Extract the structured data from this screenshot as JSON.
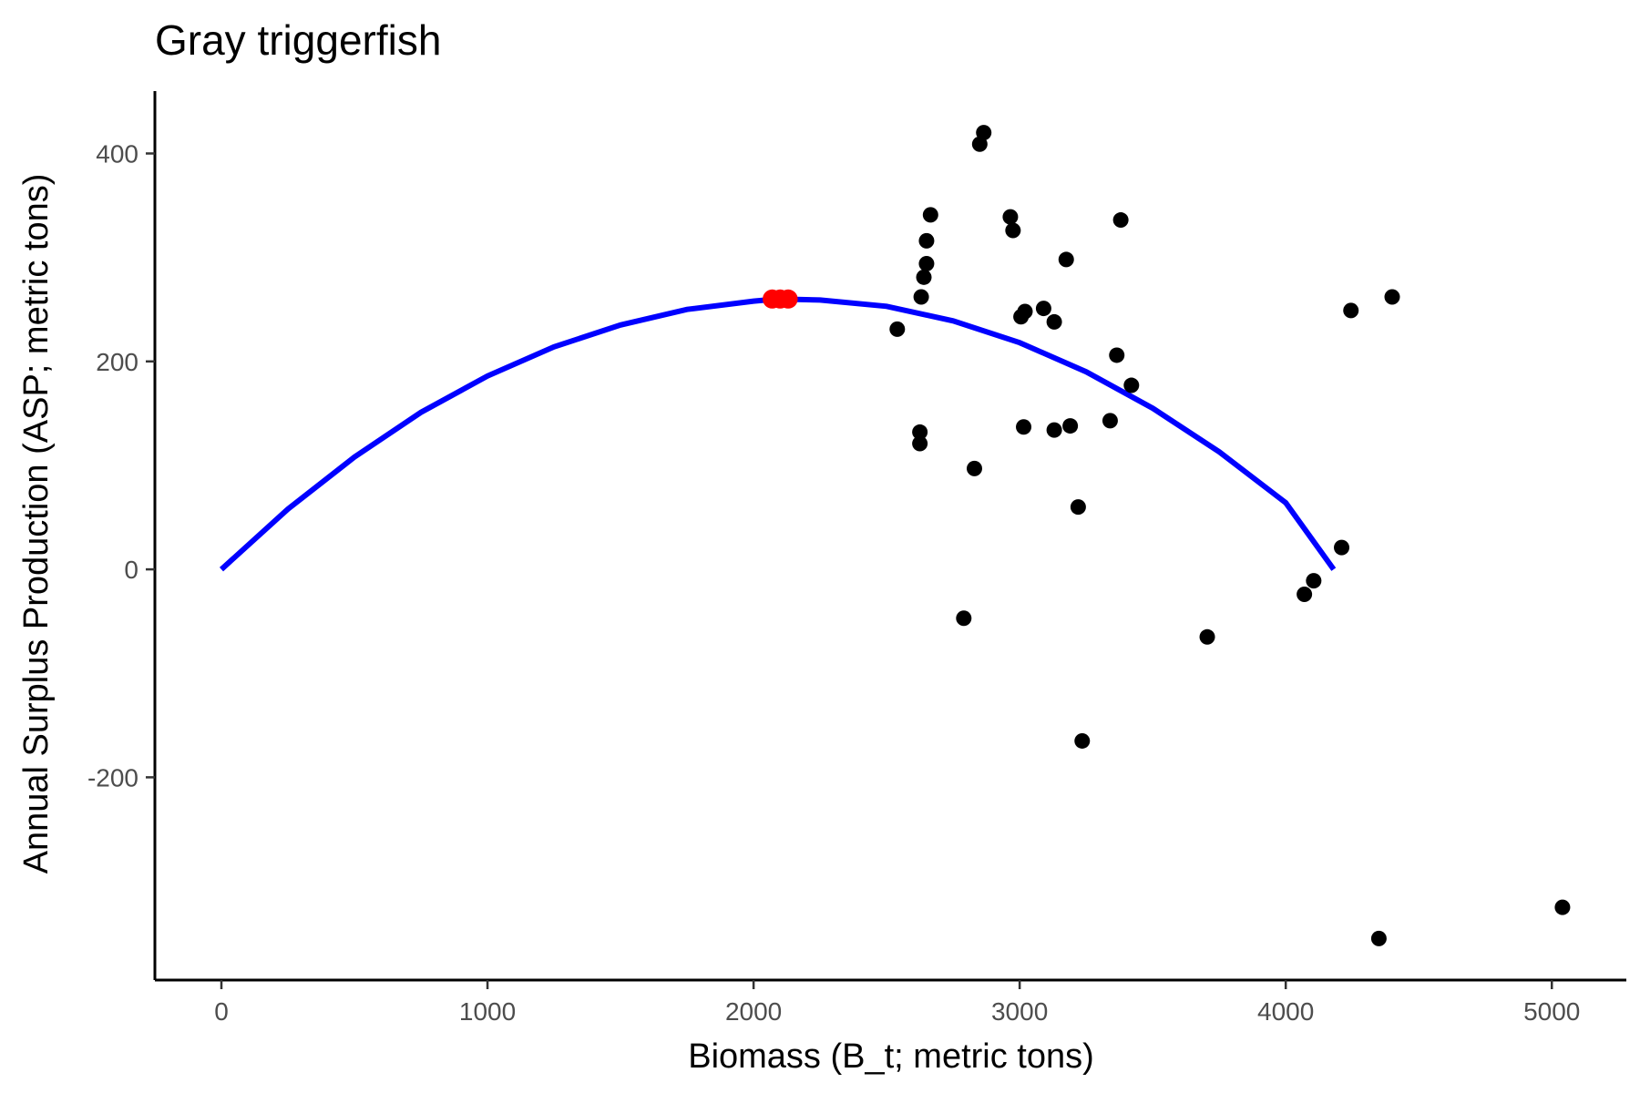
{
  "chart_data": {
    "type": "scatter",
    "title": "Gray triggerfish",
    "xlabel": "Biomass (B_t; metric tons)",
    "ylabel": "Annual Surplus Production (ASP; metric tons)",
    "xlim": [
      -250,
      5280
    ],
    "ylim": [
      -395,
      460
    ],
    "xticks": [
      0,
      1000,
      2000,
      3000,
      4000,
      5000
    ],
    "xtick_labels": [
      "0",
      "1000",
      "2000",
      "3000",
      "4000",
      "5000"
    ],
    "yticks": [
      -200,
      0,
      200,
      400
    ],
    "ytick_labels": [
      "-200",
      "0",
      "200",
      "400"
    ],
    "grid": false,
    "legend": "none",
    "colors": {
      "curve": "#0000ff",
      "points": "#000000",
      "highlight": "#ff0000"
    },
    "series": [
      {
        "kind": "points",
        "x": [
          2540,
          2625,
          2625,
          2630,
          2640,
          2650,
          2650,
          2665,
          2790,
          2830,
          2850,
          2865,
          2965,
          2975,
          3005,
          3015,
          3020,
          3090,
          3130,
          3130,
          3175,
          3190,
          3220,
          3235,
          3340,
          3365,
          3380,
          3420,
          3705,
          4070,
          4105,
          4210,
          4245,
          4350,
          4400,
          5040
        ],
        "y": [
          231,
          121,
          132,
          262,
          281,
          294,
          316,
          341,
          -47,
          97,
          409,
          420,
          339,
          326,
          243,
          137,
          248,
          251,
          238,
          134,
          298,
          138,
          60,
          -165,
          143,
          206,
          336,
          177,
          -65,
          -24,
          -11,
          21,
          249,
          -355,
          262,
          -325
        ]
      },
      {
        "kind": "curve",
        "model": "parabola",
        "x": [
          0,
          250,
          500,
          750,
          1000,
          1250,
          1500,
          1750,
          2000,
          2090,
          2250,
          2500,
          2750,
          3000,
          3250,
          3500,
          3750,
          4000,
          4180
        ],
        "y": [
          0,
          58,
          108,
          151,
          186,
          214,
          235,
          250,
          258,
          260,
          259,
          253,
          239,
          218,
          190,
          155,
          113,
          64,
          0
        ]
      },
      {
        "kind": "highlight",
        "x": [
          2070,
          2100,
          2130
        ],
        "y": [
          260,
          260,
          260
        ]
      }
    ]
  }
}
